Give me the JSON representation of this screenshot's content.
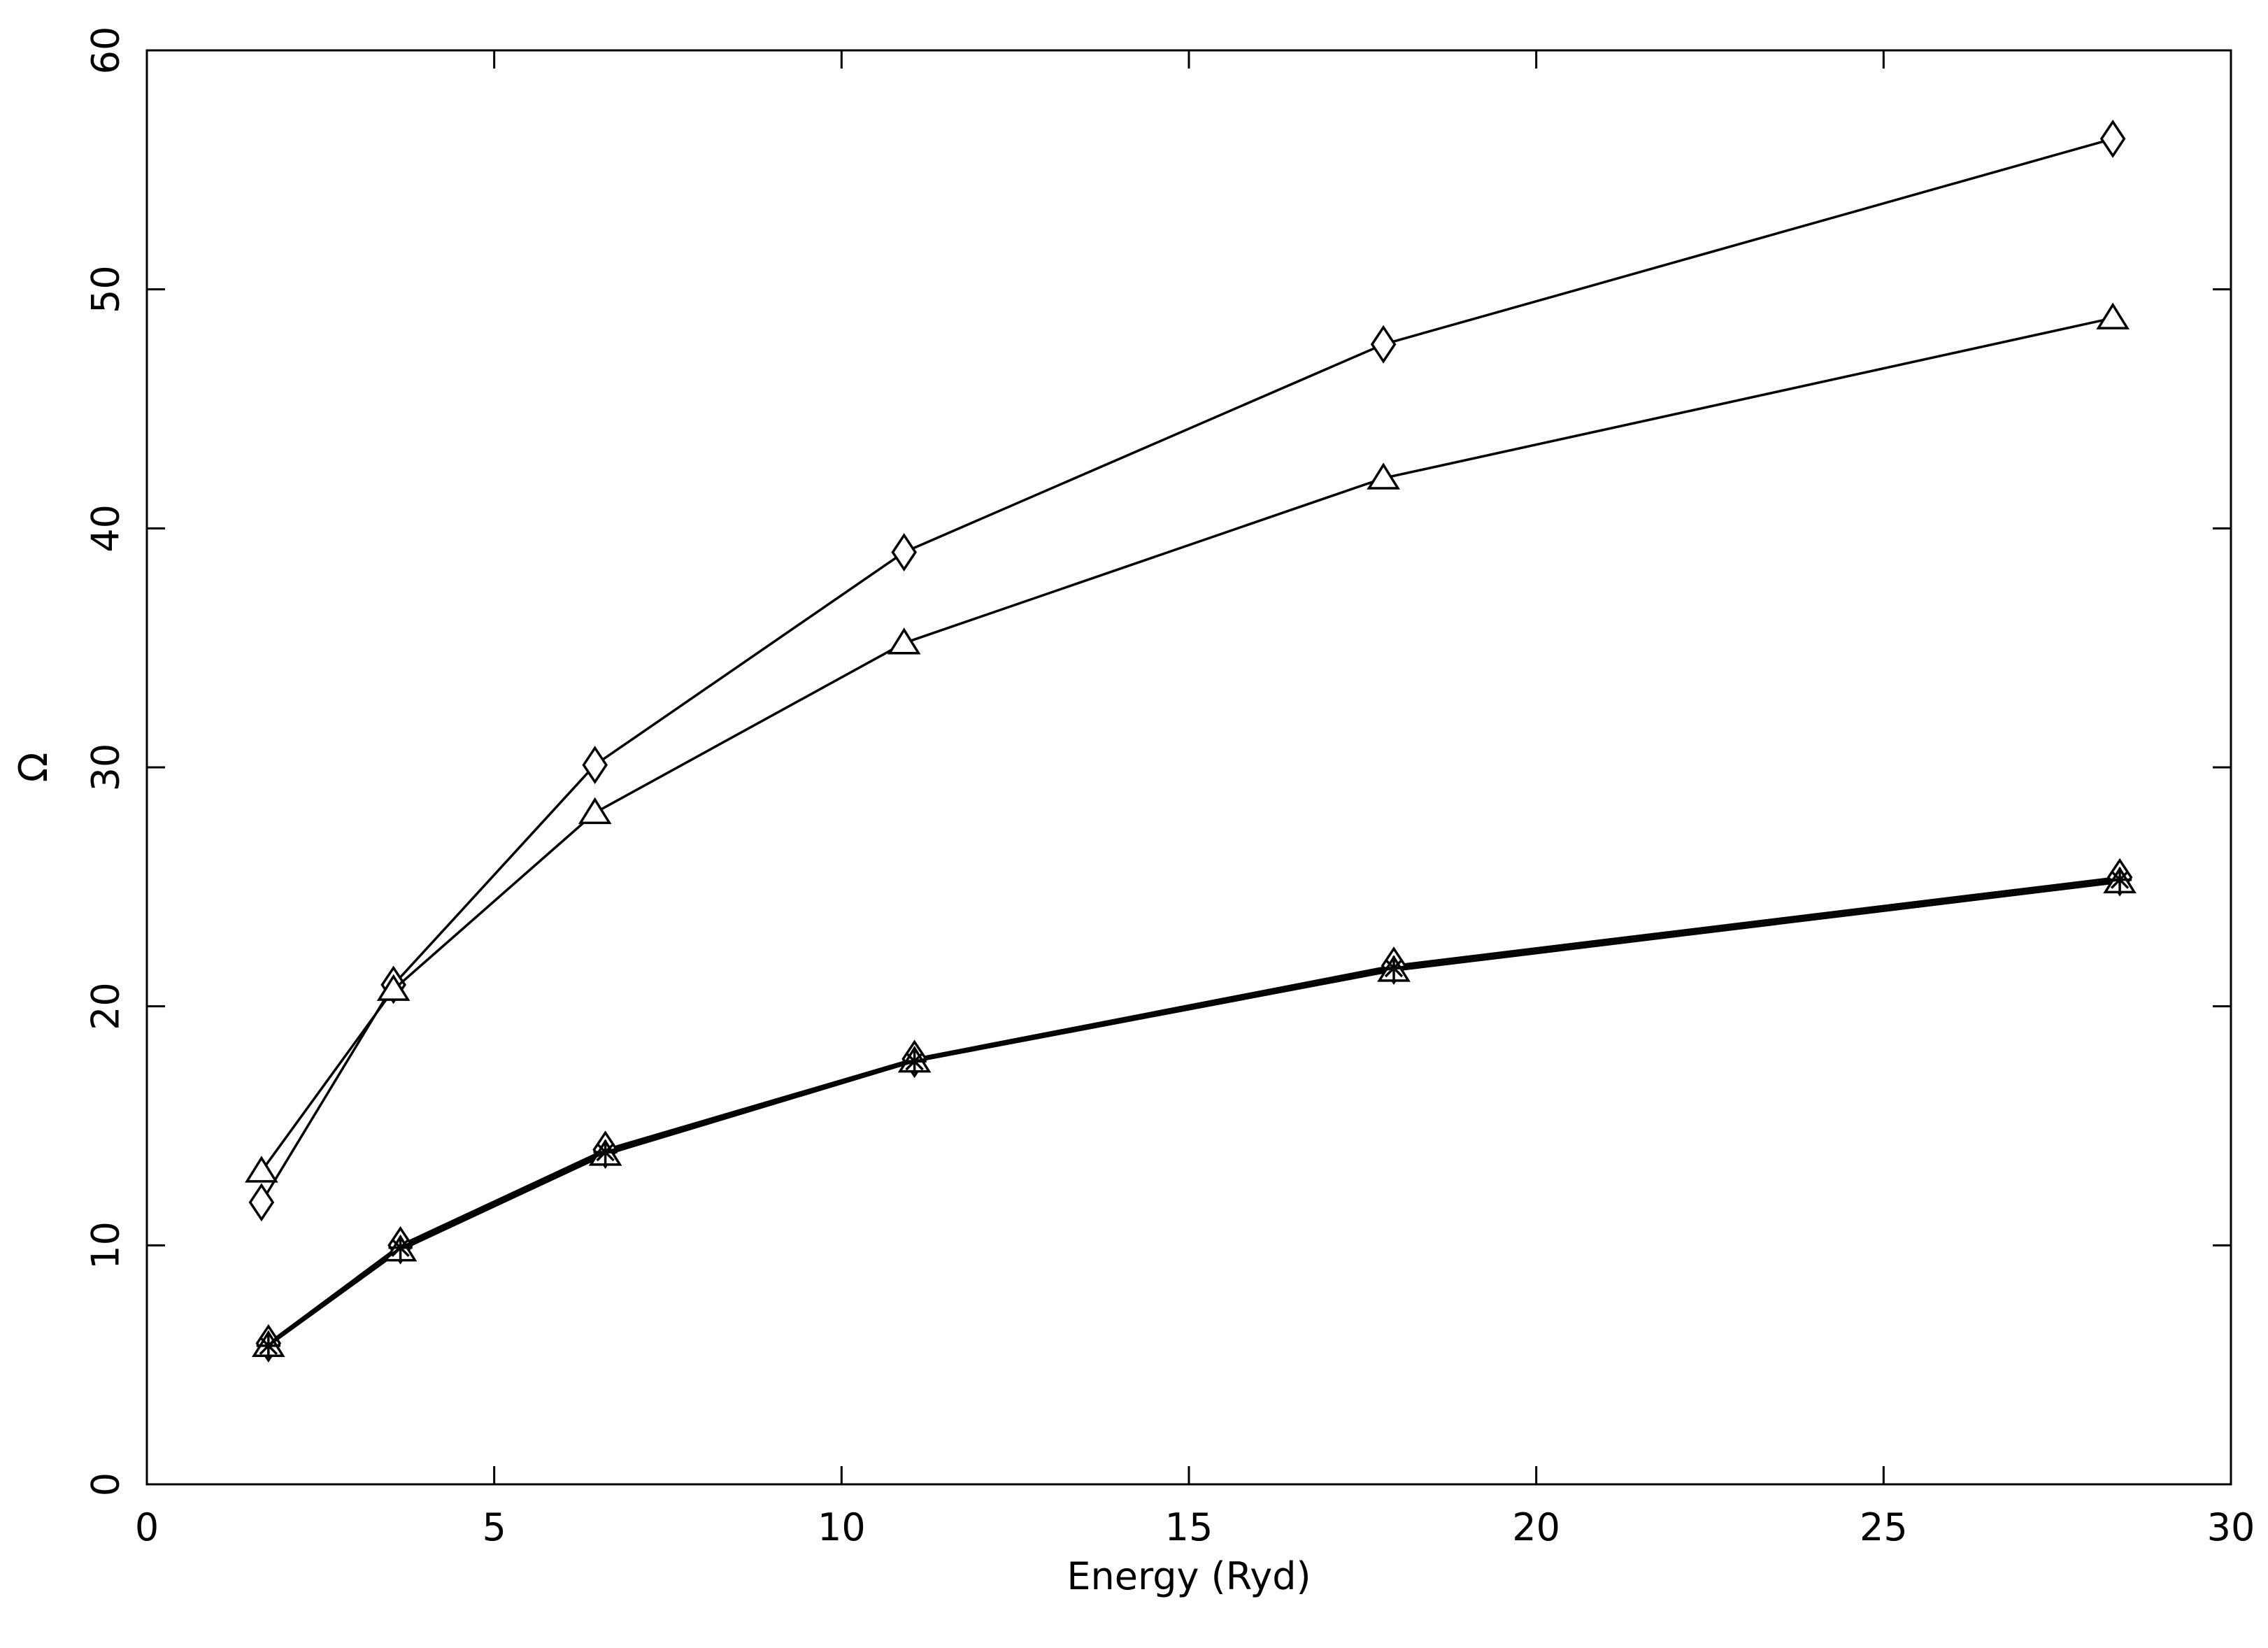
{
  "chart_data": {
    "type": "line",
    "title": "",
    "xlabel": "Energy (Ryd)",
    "ylabel": "Ω",
    "xlim": [
      0,
      30
    ],
    "ylim": [
      0,
      60
    ],
    "xticks": [
      0,
      5,
      10,
      15,
      20,
      25,
      30
    ],
    "yticks": [
      0,
      10,
      20,
      30,
      40,
      50,
      60
    ],
    "grid": false,
    "series": [
      {
        "name": "diamond-upper",
        "marker": "diamond",
        "x": [
          1.65,
          3.55,
          6.45,
          10.9,
          17.8,
          28.3
        ],
        "y": [
          11.8,
          20.9,
          30.1,
          39.0,
          47.7,
          56.3
        ]
      },
      {
        "name": "triangle-upper",
        "marker": "triangle",
        "x": [
          1.65,
          3.55,
          6.45,
          10.9,
          17.8,
          28.3
        ],
        "y": [
          13.1,
          20.7,
          28.1,
          35.2,
          42.1,
          48.8
        ]
      },
      {
        "name": "diamond-lower",
        "marker": "diamond",
        "x": [
          1.75,
          3.65,
          6.6,
          11.05,
          17.95,
          28.4
        ],
        "y": [
          5.9,
          10.0,
          14.0,
          17.8,
          21.7,
          25.4
        ]
      },
      {
        "name": "triangle-lower",
        "marker": "triangle",
        "x": [
          1.75,
          3.65,
          6.6,
          11.05,
          17.95,
          28.4
        ],
        "y": [
          5.8,
          9.8,
          13.8,
          17.7,
          21.5,
          25.2
        ]
      },
      {
        "name": "star-lower",
        "marker": "star",
        "x": [
          1.75,
          3.65,
          6.6,
          11.05,
          17.95,
          28.4
        ],
        "y": [
          5.8,
          9.9,
          13.9,
          17.7,
          21.6,
          25.3
        ]
      }
    ]
  }
}
